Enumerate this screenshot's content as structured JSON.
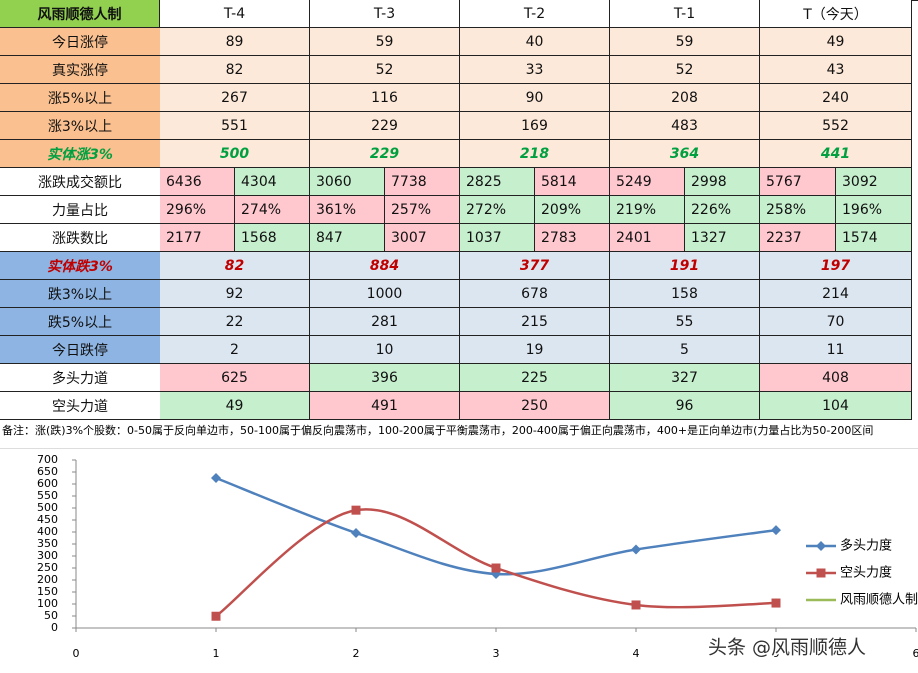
{
  "table": {
    "header": [
      "风雨顺德人制",
      "T-4",
      "T-3",
      "T-2",
      "T-1",
      "T（今天）"
    ],
    "header_fill": "#92d050",
    "rows": [
      {
        "label": "今日涨停",
        "values": [
          89,
          59,
          40,
          59,
          49
        ],
        "label_fill": "#fac090",
        "fill": "#fde9d9"
      },
      {
        "label": "真实涨停",
        "values": [
          82,
          52,
          33,
          52,
          43
        ],
        "label_fill": "#fac090",
        "fill": "#fde9d9"
      },
      {
        "label": "涨5%以上",
        "values": [
          267,
          116,
          90,
          208,
          240
        ],
        "label_fill": "#fac090",
        "fill": "#fde9d9"
      },
      {
        "label": "涨3%以上",
        "values": [
          551,
          229,
          169,
          483,
          552
        ],
        "label_fill": "#fac090",
        "fill": "#fde9d9"
      },
      {
        "label": "实体涨3%",
        "values": [
          500,
          229,
          218,
          364,
          441
        ],
        "label_fill": "#fac090",
        "fill": "#fde9d9",
        "emphasis": true,
        "color": "#00a040"
      },
      {
        "label": "涨跌成交额比",
        "values": [
          [
            6436,
            4304
          ],
          [
            3060,
            7738
          ],
          [
            2825,
            5814
          ],
          [
            5249,
            2998
          ],
          [
            5767,
            3092
          ]
        ],
        "label_fill": "#ffffff",
        "fill": [
          [
            "#ffc7ce",
            "#c6efce"
          ],
          [
            "#c6efce",
            "#ffc7ce"
          ],
          [
            "#c6efce",
            "#ffc7ce"
          ],
          [
            "#ffc7ce",
            "#c6efce"
          ],
          [
            "#ffc7ce",
            "#c6efce"
          ]
        ]
      },
      {
        "label": "力量占比",
        "values": [
          [
            "296%",
            "274%"
          ],
          [
            "361%",
            "257%"
          ],
          [
            "272%",
            "209%"
          ],
          [
            "219%",
            "226%"
          ],
          [
            "258%",
            "196%"
          ]
        ],
        "label_fill": "#ffffff",
        "fill": [
          [
            "#ffc7ce",
            "#ffc7ce"
          ],
          [
            "#ffc7ce",
            "#ffc7ce"
          ],
          [
            "#c6efce",
            "#c6efce"
          ],
          [
            "#c6efce",
            "#c6efce"
          ],
          [
            "#c6efce",
            "#c6efce"
          ]
        ]
      },
      {
        "label": "涨跌数比",
        "values": [
          [
            2177,
            1568
          ],
          [
            847,
            3007
          ],
          [
            1037,
            2783
          ],
          [
            2401,
            1327
          ],
          [
            2237,
            1574
          ]
        ],
        "label_fill": "#ffffff",
        "fill": [
          [
            "#ffc7ce",
            "#c6efce"
          ],
          [
            "#c6efce",
            "#ffc7ce"
          ],
          [
            "#c6efce",
            "#ffc7ce"
          ],
          [
            "#ffc7ce",
            "#c6efce"
          ],
          [
            "#ffc7ce",
            "#c6efce"
          ]
        ]
      },
      {
        "label": "实体跌3%",
        "values": [
          82,
          884,
          377,
          191,
          197
        ],
        "label_fill": "#8db4e2",
        "fill": "#dce6f1",
        "emphasis": true,
        "color": "#c00000"
      },
      {
        "label": "跌3%以上",
        "values": [
          92,
          1000,
          678,
          158,
          214
        ],
        "label_fill": "#8db4e2",
        "fill": "#dce6f1"
      },
      {
        "label": "跌5%以上",
        "values": [
          22,
          281,
          215,
          55,
          70
        ],
        "label_fill": "#8db4e2",
        "fill": "#dce6f1"
      },
      {
        "label": "今日跌停",
        "values": [
          2,
          10,
          19,
          5,
          11
        ],
        "label_fill": "#8db4e2",
        "fill": "#dce6f1"
      },
      {
        "label": "多头力道",
        "values": [
          625,
          396,
          225,
          327,
          408
        ],
        "label_fill": "#ffffff",
        "fill": [
          "#ffc7ce",
          "#c6efce",
          "#c6efce",
          "#c6efce",
          "#ffc7ce"
        ]
      },
      {
        "label": "空头力道",
        "values": [
          49,
          491,
          250,
          96,
          104
        ],
        "label_fill": "#ffffff",
        "fill": [
          "#c6efce",
          "#ffc7ce",
          "#ffc7ce",
          "#c6efce",
          "#c6efce"
        ]
      }
    ]
  },
  "note": "备注：涨(跌)3%个股数：0-50属于反向单边市，50-100属于偏反向震荡市，100-200属于平衡震荡市，200-400属于偏正向震荡市，400+是正向单边市(力量占比为50-200区间",
  "chart_data": {
    "type": "line",
    "x": [
      1,
      2,
      3,
      4,
      5
    ],
    "smooth": true,
    "series": [
      {
        "name": "多头力度",
        "color": "#4f81bd",
        "marker": "diamond",
        "values": [
          625,
          396,
          225,
          327,
          408
        ]
      },
      {
        "name": "空头力度",
        "color": "#c0504d",
        "marker": "square",
        "values": [
          49,
          491,
          250,
          96,
          104
        ]
      },
      {
        "name": "风雨顺德人制",
        "color": "#9bbb59",
        "marker": "none",
        "values": [
          null,
          null,
          null,
          null,
          null
        ]
      }
    ],
    "xlim": [
      0,
      6
    ],
    "xticks": [
      0,
      1,
      2,
      3,
      4,
      5,
      6
    ],
    "ylim": [
      0,
      700
    ],
    "yticks": [
      0,
      50,
      100,
      150,
      200,
      250,
      300,
      350,
      400,
      450,
      500,
      550,
      600,
      650,
      700
    ],
    "legend": "right"
  },
  "watermark": "头条 @风雨顺德人"
}
